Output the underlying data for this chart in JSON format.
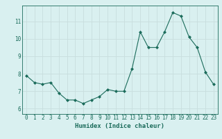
{
  "x": [
    0,
    1,
    2,
    3,
    4,
    5,
    6,
    7,
    8,
    9,
    10,
    11,
    12,
    13,
    14,
    15,
    16,
    17,
    18,
    19,
    20,
    21,
    22,
    23
  ],
  "y": [
    7.9,
    7.5,
    7.4,
    7.5,
    6.9,
    6.5,
    6.5,
    6.3,
    6.5,
    6.7,
    7.1,
    7.0,
    7.0,
    8.3,
    10.4,
    9.5,
    9.5,
    10.4,
    11.5,
    11.3,
    10.1,
    9.5,
    8.1,
    7.4
  ],
  "xlabel": "Humidex (Indice chaleur)",
  "yticks": [
    6,
    7,
    8,
    9,
    10,
    11
  ],
  "xticks": [
    0,
    1,
    2,
    3,
    4,
    5,
    6,
    7,
    8,
    9,
    10,
    11,
    12,
    13,
    14,
    15,
    16,
    17,
    18,
    19,
    20,
    21,
    22,
    23
  ],
  "xlim": [
    -0.5,
    23.5
  ],
  "ylim": [
    5.7,
    11.9
  ],
  "line_color": "#1a6b5a",
  "marker_color": "#1a6b5a",
  "bg_color": "#d9f0f0",
  "grid_color": "#c8dede",
  "tick_color": "#1a6b5a",
  "label_color": "#1a6b5a",
  "font_size_axis": 5.5,
  "font_size_label": 6.5
}
